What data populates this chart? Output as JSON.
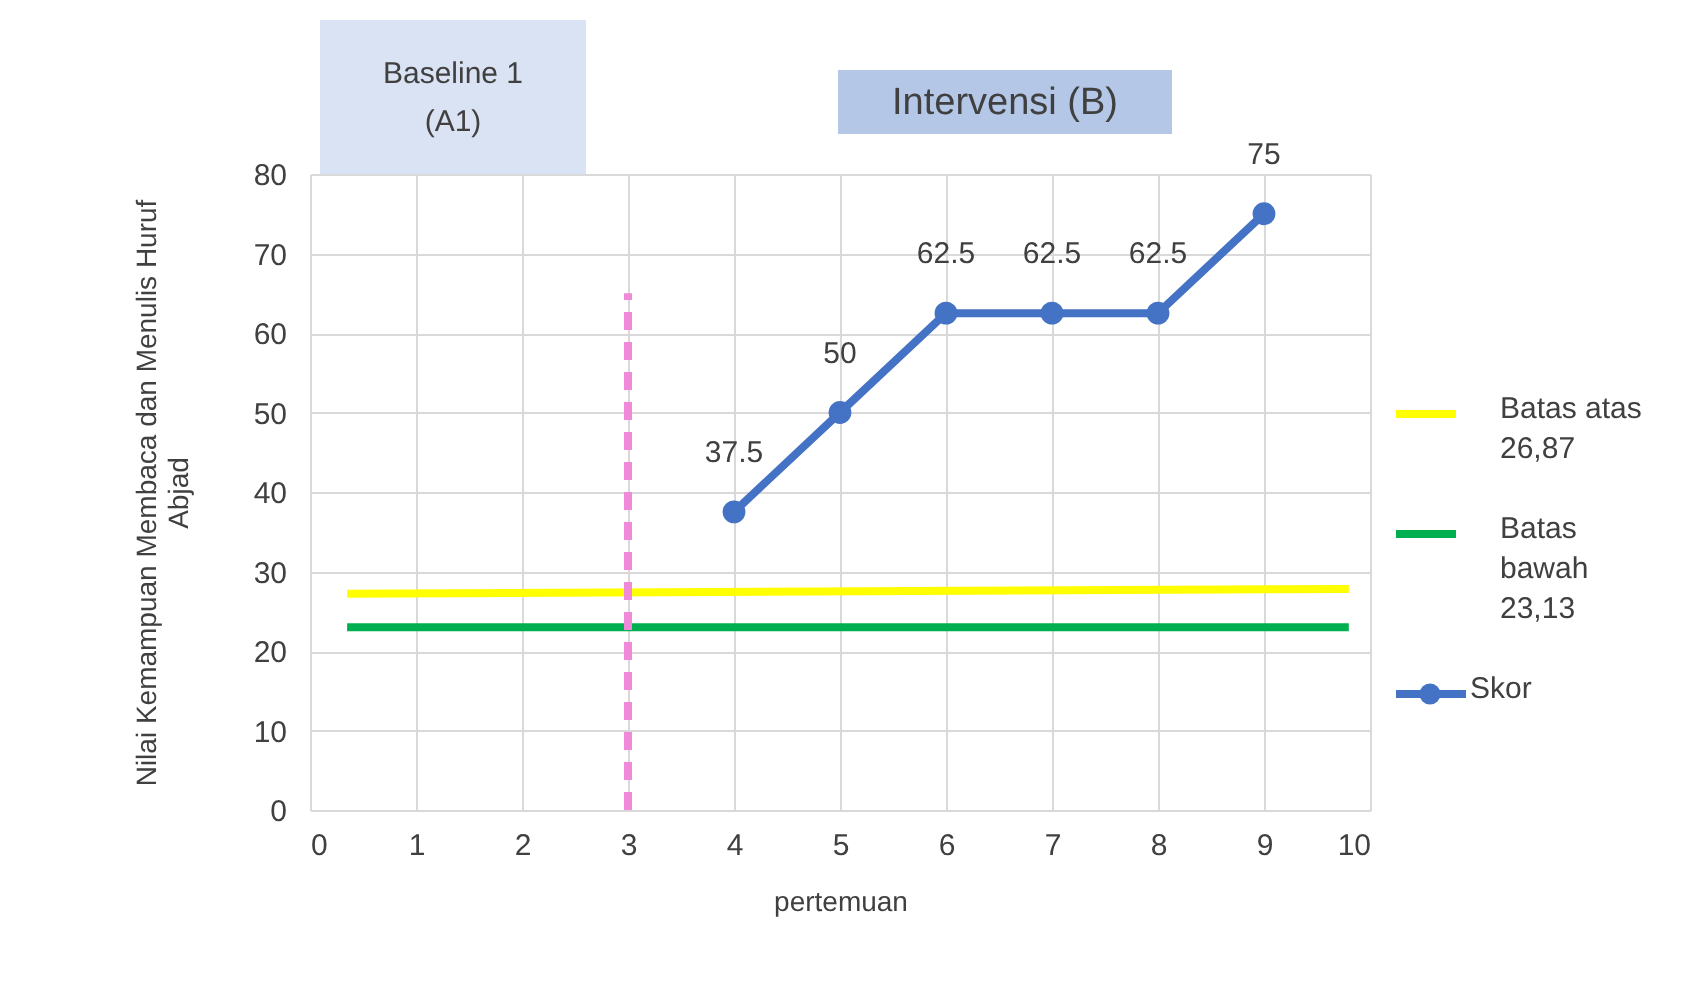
{
  "chart_data": {
    "type": "line",
    "xlabel": "pertemuan",
    "ylabel": "Nilai Kemampuan Membaca dan Menulis Huruf Abjad",
    "annotations": [
      "Baseline 1 (A1)",
      "Intervensi (B)"
    ],
    "xlim": [
      0,
      10
    ],
    "xticks": [
      0,
      1,
      2,
      3,
      4,
      5,
      6,
      7,
      8,
      9,
      10
    ],
    "ylim": [
      0,
      80
    ],
    "yticks": [
      0,
      10,
      20,
      30,
      40,
      50,
      60,
      70,
      80
    ],
    "grid": true,
    "legend": "right",
    "series": [
      {
        "name": "Batas atas 26,87",
        "color": "#ffff00",
        "x": [
          0.35,
          9.8
        ],
        "values": [
          27.2,
          27.8
        ],
        "marker": "none"
      },
      {
        "name": "Batas bawah 23,13",
        "color": "#00b050",
        "x": [
          0.35,
          9.8
        ],
        "values": [
          23,
          23
        ],
        "marker": "none"
      },
      {
        "name": "Skor",
        "color": "#4472c4",
        "x": [
          4,
          5,
          6,
          7,
          8,
          9
        ],
        "values": [
          37.5,
          50,
          62.5,
          62.5,
          62.5,
          75
        ],
        "marker": "circle",
        "value_labels": [
          "37.5",
          "50",
          "62.5",
          "62.5",
          "62.5",
          "75"
        ]
      },
      {
        "color": "#f08ad8",
        "x": [
          3,
          3
        ],
        "values": [
          0,
          65
        ],
        "marker": "none",
        "line_style": "dashed"
      }
    ]
  }
}
